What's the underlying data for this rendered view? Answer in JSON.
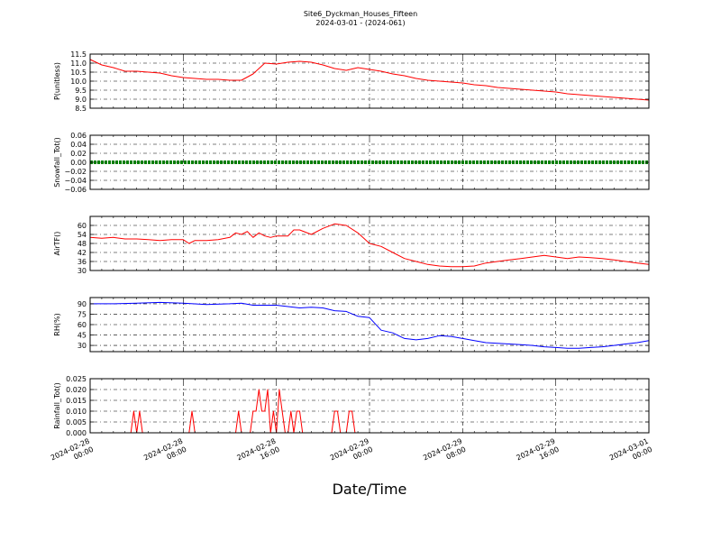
{
  "title": "Site6_Dyckman_Houses_Fifteen",
  "subtitle": "2024-03-01 - (2024-061)",
  "xlabel": "Date/Time",
  "x_ticks": [
    {
      "label1": "2024-02-28",
      "label2": "00:00",
      "h": 0
    },
    {
      "label1": "2024-02-28",
      "label2": "08:00",
      "h": 8
    },
    {
      "label1": "2024-02-28",
      "label2": "16:00",
      "h": 16
    },
    {
      "label1": "2024-02-29",
      "label2": "00:00",
      "h": 24
    },
    {
      "label1": "2024-02-29",
      "label2": "08:00",
      "h": 32
    },
    {
      "label1": "2024-02-29",
      "label2": "16:00",
      "h": 40
    },
    {
      "label1": "2024-03-01",
      "label2": "00:00",
      "h": 48
    }
  ],
  "colors": {
    "pressure": "#ff0000",
    "snow": "#007f00",
    "temp": "#ff0000",
    "rh": "#0000ff",
    "rain": "#ff0000"
  },
  "chart_data": [
    {
      "type": "line",
      "ylabel": "P(unitless)",
      "ylim": [
        8.5,
        11.5
      ],
      "yticks": [
        "8.5",
        "9.0",
        "9.5",
        "10.0",
        "10.5",
        "11.0",
        "11.5"
      ],
      "grid": true,
      "series": [
        {
          "values": [
            [
              0,
              11.2
            ],
            [
              1,
              10.9
            ],
            [
              2,
              10.75
            ],
            [
              3,
              10.55
            ],
            [
              4,
              10.55
            ],
            [
              5,
              10.5
            ],
            [
              6,
              10.45
            ],
            [
              7,
              10.3
            ],
            [
              8,
              10.2
            ],
            [
              9,
              10.15
            ],
            [
              10,
              10.1
            ],
            [
              11,
              10.1
            ],
            [
              12,
              10.05
            ],
            [
              13,
              10.05
            ],
            [
              14,
              10.4
            ],
            [
              15,
              11.0
            ],
            [
              16,
              10.95
            ],
            [
              17,
              11.05
            ],
            [
              18,
              11.1
            ],
            [
              19,
              11.05
            ],
            [
              20,
              10.9
            ],
            [
              21,
              10.7
            ],
            [
              22,
              10.6
            ],
            [
              23,
              10.75
            ],
            [
              24,
              10.65
            ],
            [
              25,
              10.55
            ],
            [
              26,
              10.4
            ],
            [
              27,
              10.3
            ],
            [
              28,
              10.15
            ],
            [
              29,
              10.05
            ],
            [
              30,
              10.0
            ],
            [
              31,
              9.95
            ],
            [
              32,
              9.9
            ],
            [
              33,
              9.8
            ],
            [
              34,
              9.75
            ],
            [
              35,
              9.65
            ],
            [
              36,
              9.6
            ],
            [
              37,
              9.55
            ],
            [
              38,
              9.5
            ],
            [
              39,
              9.45
            ],
            [
              40,
              9.4
            ],
            [
              41,
              9.3
            ],
            [
              42,
              9.25
            ],
            [
              43,
              9.2
            ],
            [
              44,
              9.15
            ],
            [
              45,
              9.1
            ],
            [
              46,
              9.05
            ],
            [
              47,
              9.0
            ],
            [
              48,
              8.95
            ]
          ]
        }
      ]
    },
    {
      "type": "line",
      "ylabel": "Snowfall_Tot()",
      "ylim": [
        -0.06,
        0.06
      ],
      "yticks": [
        "−0.06",
        "−0.04",
        "−0.02",
        "0.00",
        "0.02",
        "0.04",
        "0.06"
      ],
      "grid": true,
      "series": [
        {
          "values": [
            [
              0,
              0
            ],
            [
              48,
              0
            ]
          ]
        }
      ]
    },
    {
      "type": "line",
      "ylabel": "AirTF()",
      "ylim": [
        30,
        66
      ],
      "yticks": [
        "30",
        "36",
        "42",
        "48",
        "54",
        "60"
      ],
      "grid": true,
      "series": [
        {
          "values": [
            [
              0,
              52
            ],
            [
              1,
              51.5
            ],
            [
              2,
              52
            ],
            [
              3,
              51
            ],
            [
              4,
              51
            ],
            [
              5,
              50.5
            ],
            [
              6,
              50
            ],
            [
              7,
              50.5
            ],
            [
              8,
              50.5
            ],
            [
              8.5,
              48
            ],
            [
              9,
              50
            ],
            [
              10,
              50
            ],
            [
              11,
              50.5
            ],
            [
              12,
              52
            ],
            [
              12.5,
              55
            ],
            [
              13,
              54
            ],
            [
              13.5,
              56
            ],
            [
              14,
              52
            ],
            [
              14.5,
              55
            ],
            [
              15,
              53
            ],
            [
              15.5,
              52
            ],
            [
              16,
              53
            ],
            [
              17,
              53
            ],
            [
              17.5,
              57
            ],
            [
              18,
              57
            ],
            [
              19,
              54
            ],
            [
              20,
              58
            ],
            [
              21,
              61
            ],
            [
              22,
              60
            ],
            [
              23,
              55
            ],
            [
              24,
              48
            ],
            [
              25,
              46
            ],
            [
              26,
              42
            ],
            [
              27,
              38
            ],
            [
              28,
              36
            ],
            [
              29,
              34
            ],
            [
              30,
              33
            ],
            [
              31,
              32.5
            ],
            [
              32,
              32.5
            ],
            [
              33,
              33
            ],
            [
              34,
              35
            ],
            [
              35,
              36
            ],
            [
              36,
              37
            ],
            [
              37,
              38
            ],
            [
              38,
              39
            ],
            [
              39,
              40
            ],
            [
              40,
              39
            ],
            [
              41,
              38
            ],
            [
              42,
              39
            ],
            [
              43,
              38.5
            ],
            [
              44,
              38
            ],
            [
              45,
              37
            ],
            [
              46,
              36
            ],
            [
              47,
              35
            ],
            [
              48,
              34
            ]
          ]
        }
      ]
    },
    {
      "type": "line",
      "ylabel": "RH(%)",
      "ylim": [
        21,
        99
      ],
      "yticks": [
        "30",
        "45",
        "60",
        "75",
        "90"
      ],
      "grid": true,
      "series": [
        {
          "values": [
            [
              0,
              90
            ],
            [
              2,
              90
            ],
            [
              4,
              91
            ],
            [
              6,
              92
            ],
            [
              8,
              91
            ],
            [
              10,
              89
            ],
            [
              12,
              90
            ],
            [
              13,
              91
            ],
            [
              14,
              88
            ],
            [
              16,
              88
            ],
            [
              17,
              86
            ],
            [
              18,
              84
            ],
            [
              19,
              85
            ],
            [
              20,
              84
            ],
            [
              21,
              80
            ],
            [
              22,
              79
            ],
            [
              23,
              72
            ],
            [
              24,
              70
            ],
            [
              25,
              52
            ],
            [
              26,
              48
            ],
            [
              27,
              40
            ],
            [
              28,
              38
            ],
            [
              29,
              40
            ],
            [
              30,
              44
            ],
            [
              31,
              43
            ],
            [
              32,
              40
            ],
            [
              33,
              37
            ],
            [
              34,
              34
            ],
            [
              35,
              33
            ],
            [
              36,
              32
            ],
            [
              37,
              31
            ],
            [
              38,
              30
            ],
            [
              39,
              28
            ],
            [
              40,
              27
            ],
            [
              41,
              26
            ],
            [
              42,
              26
            ],
            [
              43,
              27
            ],
            [
              44,
              28
            ],
            [
              45,
              30
            ],
            [
              46,
              32
            ],
            [
              47,
              34
            ],
            [
              48,
              37
            ]
          ]
        }
      ]
    },
    {
      "type": "line",
      "ylabel": "Rainfall_Tot()",
      "ylim": [
        0.0,
        0.025
      ],
      "yticks": [
        "0.000",
        "0.005",
        "0.010",
        "0.015",
        "0.020",
        "0.025"
      ],
      "grid": true,
      "series": [
        {
          "values": [
            [
              0,
              0
            ],
            [
              3.5,
              0
            ],
            [
              3.75,
              0.01
            ],
            [
              4.0,
              0
            ],
            [
              4.25,
              0.01
            ],
            [
              4.5,
              0
            ],
            [
              8.5,
              0
            ],
            [
              8.75,
              0.01
            ],
            [
              9.0,
              0
            ],
            [
              12.5,
              0
            ],
            [
              12.75,
              0.01
            ],
            [
              13.0,
              0
            ],
            [
              13.75,
              0
            ],
            [
              14.0,
              0.01
            ],
            [
              14.25,
              0.01
            ],
            [
              14.5,
              0.02
            ],
            [
              14.75,
              0.01
            ],
            [
              15.0,
              0.01
            ],
            [
              15.25,
              0.02
            ],
            [
              15.5,
              0
            ],
            [
              15.75,
              0.01
            ],
            [
              16.0,
              0
            ],
            [
              16.25,
              0.02
            ],
            [
              16.5,
              0.01
            ],
            [
              16.75,
              0
            ],
            [
              17.0,
              0
            ],
            [
              17.25,
              0.01
            ],
            [
              17.5,
              0
            ],
            [
              17.75,
              0.01
            ],
            [
              18.0,
              0.01
            ],
            [
              18.25,
              0
            ],
            [
              20.75,
              0
            ],
            [
              21.0,
              0.01
            ],
            [
              21.25,
              0.01
            ],
            [
              21.5,
              0
            ],
            [
              22.0,
              0
            ],
            [
              22.25,
              0.01
            ],
            [
              22.5,
              0.01
            ],
            [
              22.75,
              0
            ],
            [
              48,
              0
            ]
          ]
        }
      ]
    }
  ]
}
